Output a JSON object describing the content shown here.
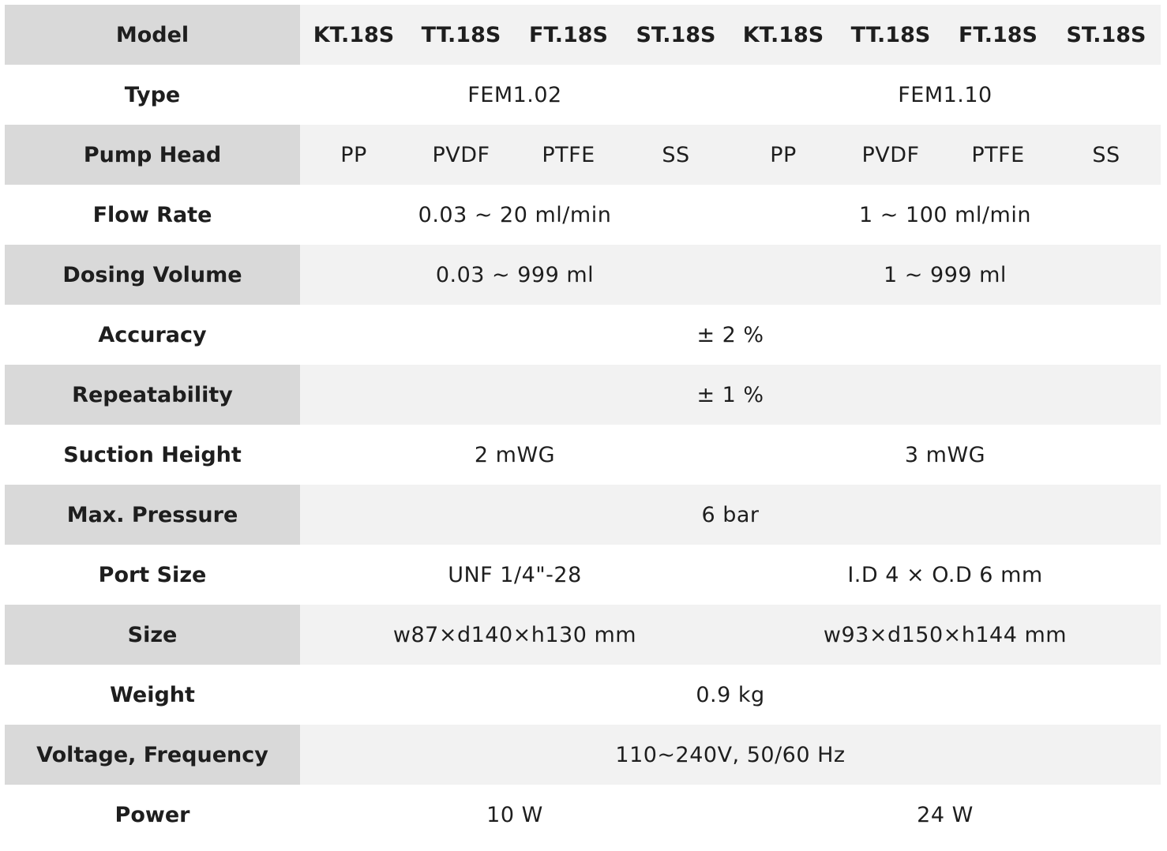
{
  "table": {
    "header": {
      "label": "Model",
      "models": [
        "KT.18S",
        "TT.18S",
        "FT.18S",
        "ST.18S",
        "KT.18S",
        "TT.18S",
        "FT.18S",
        "ST.18S"
      ]
    },
    "rows": {
      "type": {
        "label": "Type",
        "group1": "FEM1.02",
        "group2": "FEM1.10"
      },
      "pump_head": {
        "label": "Pump Head",
        "values": [
          "PP",
          "PVDF",
          "PTFE",
          "SS",
          "PP",
          "PVDF",
          "PTFE",
          "SS"
        ]
      },
      "flow_rate": {
        "label": "Flow Rate",
        "group1": "0.03 ~ 20 ml/min",
        "group2": "1 ~ 100 ml/min"
      },
      "dosing_volume": {
        "label": "Dosing Volume",
        "group1": "0.03 ~ 999 ml",
        "group2": "1 ~ 999 ml"
      },
      "accuracy": {
        "label": "Accuracy",
        "all": "± 2 %"
      },
      "repeatability": {
        "label": "Repeatability",
        "all": "± 1 %"
      },
      "suction_height": {
        "label": "Suction Height",
        "group1": "2 mWG",
        "group2": "3 mWG"
      },
      "max_pressure": {
        "label": "Max. Pressure",
        "all": "6 bar"
      },
      "port_size": {
        "label": "Port Size",
        "group1": "UNF 1/4\"-28",
        "group2": "I.D 4 × O.D 6 mm"
      },
      "size": {
        "label": "Size",
        "group1": "w87×d140×h130 mm",
        "group2": "w93×d150×h144 mm"
      },
      "weight": {
        "label": "Weight",
        "all": "0.9 kg"
      },
      "voltage": {
        "label": "Voltage, Frequency",
        "all": "110~240V, 50/60 Hz"
      },
      "power": {
        "label": "Power",
        "group1": "10 W",
        "group2": "24 W"
      }
    }
  },
  "colors": {
    "label_shade": "#d9d9d9",
    "row_shade": "#f2f2f2",
    "text": "#1e1e1e"
  }
}
